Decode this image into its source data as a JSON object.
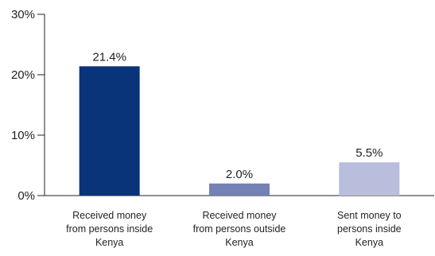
{
  "chart_data": {
    "type": "bar",
    "categories": [
      [
        "Received money",
        "from persons inside",
        "Kenya"
      ],
      [
        "Received money",
        "from persons outside",
        "Kenya"
      ],
      [
        "Sent money to",
        "persons inside",
        "Kenya"
      ]
    ],
    "values": [
      21.4,
      2.0,
      5.5
    ],
    "value_labels": [
      "21.4%",
      "2.0%",
      "5.5%"
    ],
    "bar_colors": [
      "#0a3479",
      "#7481b4",
      "#b9bedd"
    ],
    "ylim": [
      0,
      30
    ],
    "yticks": [
      0,
      10,
      20,
      30
    ],
    "ytick_labels": [
      "0%",
      "10%",
      "20%",
      "30%"
    ],
    "title": "",
    "xlabel": "",
    "ylabel": "",
    "grid": false,
    "axis_color": "#231f20"
  }
}
